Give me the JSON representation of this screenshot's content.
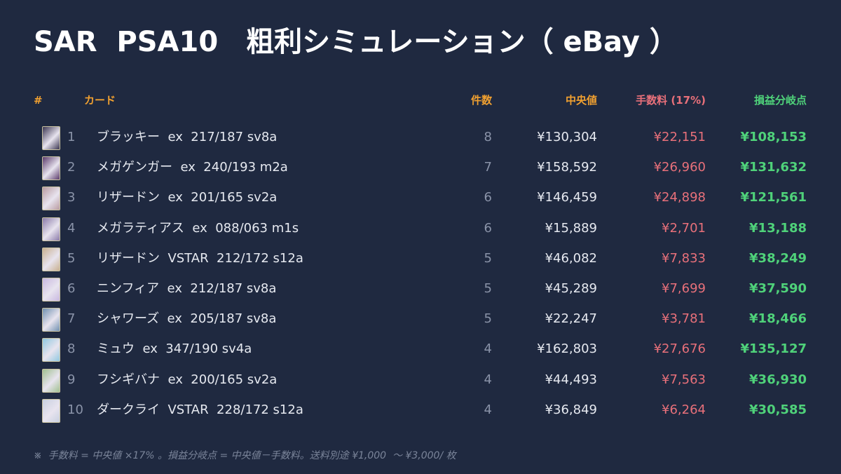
{
  "header": {
    "title": "SAR  PSA10　粗利シミュレーション（ eBay ）"
  },
  "table": {
    "columns": [
      "#",
      "カード",
      "件数",
      "中央値",
      "手数料 (17%)",
      "損益分岐点"
    ],
    "rows": [
      [
        "1",
        "ブラッキー  ex  217/187 sv8a",
        "8",
        "¥130,304",
        "¥22,151",
        "¥108,153"
      ],
      [
        "2",
        "メガゲンガー  ex  240/193 m2a",
        "7",
        "¥158,592",
        "¥26,960",
        "¥131,632"
      ],
      [
        "3",
        "リザードン  ex  201/165 sv2a",
        "6",
        "¥146,459",
        "¥24,898",
        "¥121,561"
      ],
      [
        "4",
        "メガラティアス  ex  088/063 m1s",
        "6",
        "¥15,889",
        "¥2,701",
        "¥13,188"
      ],
      [
        "5",
        "リザードン  VSTAR  212/172 s12a",
        "5",
        "¥46,082",
        "¥7,833",
        "¥38,249"
      ],
      [
        "6",
        "ニンフィア  ex  212/187 sv8a",
        "5",
        "¥45,289",
        "¥7,699",
        "¥37,590"
      ],
      [
        "7",
        "シャワーズ  ex  205/187 sv8a",
        "5",
        "¥22,247",
        "¥3,781",
        "¥18,466"
      ],
      [
        "8",
        "ミュウ  ex  347/190 sv4a",
        "4",
        "¥162,803",
        "¥27,676",
        "¥135,127"
      ],
      [
        "9",
        "フシギバナ  ex  200/165 sv2a",
        "4",
        "¥44,493",
        "¥7,563",
        "¥36,930"
      ],
      [
        "10",
        "ダークライ  VSTAR  228/172 s12a",
        "4",
        "¥36,849",
        "¥6,264",
        "¥30,585"
      ]
    ]
  },
  "footnote": "※  手数料 = 中央値 ×17% 。損益分岐点 = 中央値－手数料。送料別途 ¥1,000  〜 ¥3,000/ 枚"
}
